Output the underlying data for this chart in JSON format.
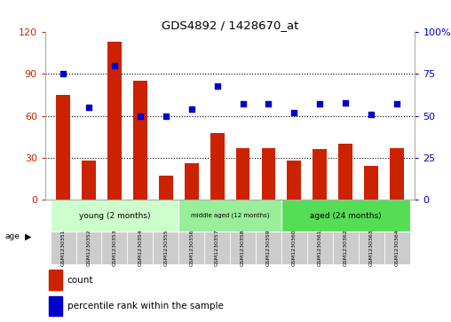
{
  "title": "GDS4892 / 1428670_at",
  "samples": [
    "GSM1230351",
    "GSM1230352",
    "GSM1230353",
    "GSM1230354",
    "GSM1230355",
    "GSM1230356",
    "GSM1230357",
    "GSM1230358",
    "GSM1230359",
    "GSM1230360",
    "GSM1230361",
    "GSM1230362",
    "GSM1230363",
    "GSM1230364"
  ],
  "counts": [
    75,
    28,
    113,
    85,
    17,
    26,
    48,
    37,
    37,
    28,
    36,
    40,
    24,
    37
  ],
  "percentiles": [
    75,
    55,
    80,
    50,
    50,
    54,
    68,
    57,
    57,
    52,
    57,
    58,
    51,
    57
  ],
  "groups": [
    {
      "label": "young (2 months)",
      "start": 0,
      "end": 5,
      "color": "#ccffcc"
    },
    {
      "label": "middle aged (12 months)",
      "start": 5,
      "end": 9,
      "color": "#99ee99"
    },
    {
      "label": "aged (24 months)",
      "start": 9,
      "end": 14,
      "color": "#55dd55"
    }
  ],
  "ylim_left": [
    0,
    120
  ],
  "ylim_right": [
    0,
    100
  ],
  "yticks_left": [
    0,
    30,
    60,
    90,
    120
  ],
  "yticks_right": [
    0,
    25,
    50,
    75,
    100
  ],
  "bar_color": "#cc2200",
  "scatter_color": "#0000cc",
  "tick_area_color": "#cccccc",
  "left_label_color": "#cc2200",
  "right_label_color": "#0000cc",
  "group_border_color": "#888888"
}
